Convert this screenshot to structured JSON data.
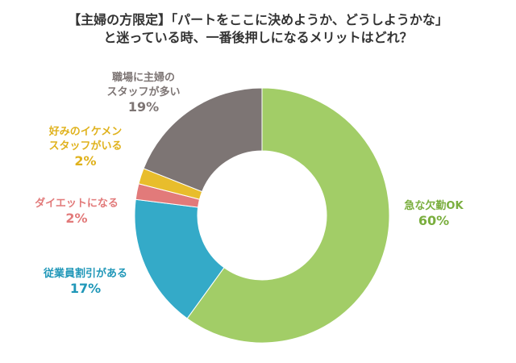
{
  "title_lines": [
    "【主婦の方限定】「パートをここに決めようか、どうしようかな」",
    "と迷っている時、一番後押しになるメリットはどれ？"
  ],
  "chart_data": {
    "type": "pie",
    "title": "【主婦の方限定】「パートをここに決めようか、どうしようかな」と迷っている時、一番後押しになるメリットはどれ？",
    "slices": [
      {
        "label_lines": [
          "急な欠勤OK"
        ],
        "value": 60,
        "value_label": "60%",
        "color": "#a2cd67"
      },
      {
        "label_lines": [
          "従業員割引がある"
        ],
        "value": 17,
        "value_label": "17%",
        "color": "#34aac8"
      },
      {
        "label_lines": [
          "ダイエットになる"
        ],
        "value": 2,
        "value_label": "2%",
        "color": "#e27a7a"
      },
      {
        "label_lines": [
          "好みのイケメン",
          "スタッフがいる"
        ],
        "value": 2,
        "value_label": "2%",
        "color": "#e8bd2c"
      },
      {
        "label_lines": [
          "職場に主婦の",
          "スタッフが多い"
        ],
        "value": 19,
        "value_label": "19%",
        "color": "#7d7574"
      }
    ],
    "label_colors": [
      "#7aae3e",
      "#1f97b8",
      "#e27a7a",
      "#e0b21d",
      "#7d7574"
    ],
    "start": "12 o'clock",
    "direction": "clockwise",
    "hole": "donut"
  }
}
